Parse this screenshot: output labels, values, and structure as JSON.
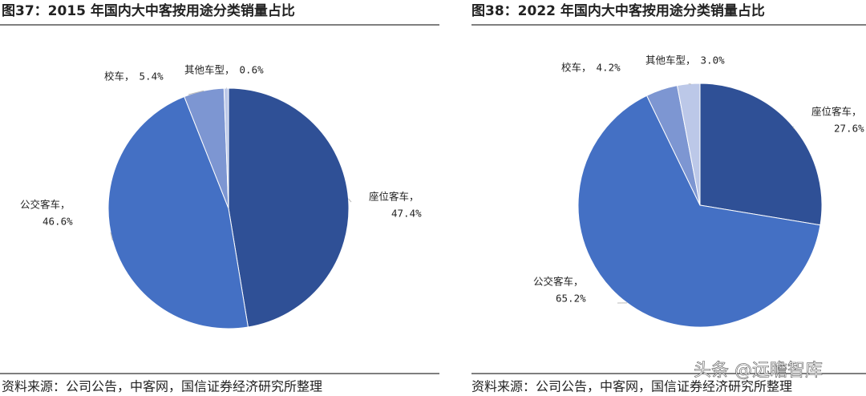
{
  "chart_data": [
    {
      "type": "pie",
      "title": "图37：2015 年国内大中客按用途分类销量占比",
      "categories": [
        "座位客车，",
        "公交客车，",
        "校车，",
        "其他车型，"
      ],
      "values": [
        47.4,
        46.6,
        5.4,
        0.6
      ],
      "value_labels": [
        "47.4%",
        "46.6%",
        "5.4%",
        "0.6%"
      ],
      "colors": [
        "#2f5096",
        "#4470c4",
        "#7d96d2",
        "#bcc8e8"
      ],
      "source": "资料来源：公司公告，中客网，国信证券经济研究所整理"
    },
    {
      "type": "pie",
      "title": "图38：2022 年国内大中客按用途分类销量占比",
      "categories": [
        "座位客车，",
        "公交客车，",
        "校车，",
        "其他车型，"
      ],
      "values": [
        27.6,
        65.2,
        4.2,
        3.0
      ],
      "value_labels": [
        "27.6%",
        "65.2%",
        "4.2%",
        "3.0%"
      ],
      "colors": [
        "#2f5096",
        "#4470c4",
        "#7d96d2",
        "#bcc8e8"
      ],
      "source": "资料来源：公司公告，中客网，国信证券经济研究所整理"
    }
  ],
  "watermark": "头条 @远瞻智库"
}
